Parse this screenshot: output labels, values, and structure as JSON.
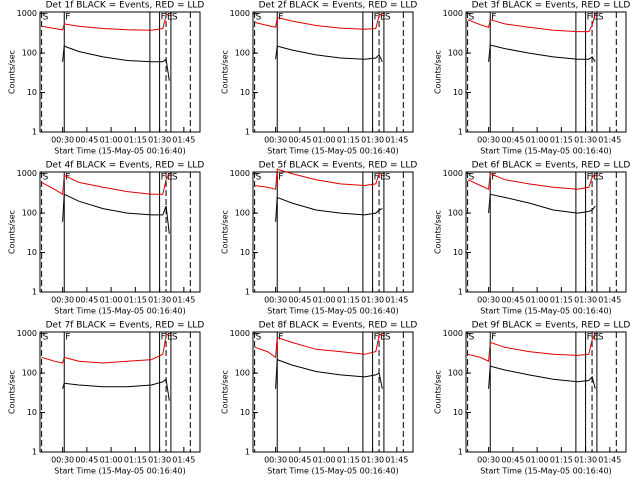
{
  "chart_data": [
    {
      "type": "line",
      "title": "Det 1f BLACK = Events, RED = LLD",
      "xlabel": "Start Time (15-May-05 00:16:40)",
      "ylabel": "Counts/sec",
      "log_y": true,
      "x": [
        "00:17",
        "00:25",
        "00:30",
        "00:31",
        "00:40",
        "00:55",
        "01:10",
        "01:25",
        "01:32",
        "01:34",
        "01:36"
      ],
      "series": [
        {
          "color": "#000000",
          "values": [
            null,
            null,
            60,
            150,
            110,
            80,
            65,
            60,
            60,
            70,
            20
          ]
        },
        {
          "color": "#e00000",
          "values": [
            480,
            420,
            390,
            550,
            480,
            420,
            390,
            380,
            420,
            900,
            1000
          ]
        }
      ],
      "xlim": [
        "00:16",
        "01:55"
      ],
      "xticks": [
        "00:30",
        "00:45",
        "01:00",
        "01:15",
        "01:30",
        "01:45"
      ],
      "ylim": [
        1,
        1100
      ],
      "yticks": [
        1,
        10,
        100,
        1000
      ],
      "markers": [
        {
          "x": "00:17",
          "style": "dashed",
          "label": "S"
        },
        {
          "x": "00:31",
          "style": "solid",
          "label": "F"
        },
        {
          "x": "01:24",
          "style": "solid"
        },
        {
          "x": "01:30",
          "style": "solid",
          "label": "F"
        },
        {
          "x": "01:34",
          "style": "dashed",
          "label": "E"
        },
        {
          "x": "01:37",
          "style": "solid",
          "label": "S"
        },
        {
          "x": "01:49",
          "style": "dashed"
        }
      ]
    },
    {
      "type": "line",
      "title": "Det 2f BLACK = Events, RED = LLD",
      "xlabel": "Start Time (15-May-05 00:16:40)",
      "ylabel": "Counts/sec",
      "log_y": true,
      "x": [
        "00:17",
        "00:25",
        "00:30",
        "00:31",
        "00:40",
        "00:55",
        "01:10",
        "01:25",
        "01:32",
        "01:34",
        "01:36"
      ],
      "series": [
        {
          "color": "#000000",
          "values": [
            null,
            null,
            70,
            150,
            120,
            90,
            75,
            70,
            75,
            90,
            60
          ]
        },
        {
          "color": "#e00000",
          "values": [
            600,
            500,
            450,
            800,
            650,
            500,
            430,
            400,
            420,
            900,
            1000
          ]
        }
      ],
      "xlim": [
        "00:16",
        "01:55"
      ],
      "xticks": [
        "00:30",
        "00:45",
        "01:00",
        "01:15",
        "01:30",
        "01:45"
      ],
      "ylim": [
        1,
        1100
      ],
      "yticks": [
        1,
        10,
        100,
        1000
      ],
      "markers": [
        {
          "x": "00:17",
          "style": "dashed",
          "label": "S"
        },
        {
          "x": "00:31",
          "style": "solid",
          "label": "F"
        },
        {
          "x": "01:24",
          "style": "solid"
        },
        {
          "x": "01:30",
          "style": "solid",
          "label": "F"
        },
        {
          "x": "01:34",
          "style": "dashed",
          "label": "E"
        },
        {
          "x": "01:37",
          "style": "solid",
          "label": "S"
        },
        {
          "x": "01:49",
          "style": "dashed"
        }
      ]
    },
    {
      "type": "line",
      "title": "Det 3f BLACK = Events, RED = LLD",
      "xlabel": "Start Time (15-May-05 00:16:40)",
      "ylabel": "Counts/sec",
      "log_y": true,
      "x": [
        "00:17",
        "00:25",
        "00:30",
        "00:31",
        "00:40",
        "00:55",
        "01:10",
        "01:25",
        "01:32",
        "01:34",
        "01:36"
      ],
      "series": [
        {
          "color": "#000000",
          "values": [
            null,
            null,
            60,
            160,
            130,
            100,
            80,
            70,
            70,
            80,
            60
          ]
        },
        {
          "color": "#e00000",
          "values": [
            700,
            520,
            450,
            700,
            550,
            450,
            380,
            350,
            350,
            500,
            1000
          ]
        }
      ],
      "xlim": [
        "00:16",
        "01:55"
      ],
      "xticks": [
        "00:30",
        "00:45",
        "01:00",
        "01:15",
        "01:30",
        "01:45"
      ],
      "ylim": [
        1,
        1100
      ],
      "yticks": [
        1,
        10,
        100,
        1000
      ],
      "markers": [
        {
          "x": "00:17",
          "style": "dashed",
          "label": "S"
        },
        {
          "x": "00:31",
          "style": "solid",
          "label": "F"
        },
        {
          "x": "01:24",
          "style": "solid"
        },
        {
          "x": "01:30",
          "style": "solid",
          "label": "F"
        },
        {
          "x": "01:34",
          "style": "dashed",
          "label": "E"
        },
        {
          "x": "01:37",
          "style": "solid",
          "label": "S"
        },
        {
          "x": "01:49",
          "style": "dashed"
        }
      ]
    },
    {
      "type": "line",
      "title": "Det 4f BLACK = Events, RED = LLD",
      "xlabel": "Start Time (15-May-05 00:16:40)",
      "ylabel": "Counts/sec",
      "log_y": true,
      "x": [
        "00:17",
        "00:25",
        "00:30",
        "00:31",
        "00:40",
        "00:55",
        "01:10",
        "01:25",
        "01:32",
        "01:34",
        "01:36"
      ],
      "series": [
        {
          "color": "#000000",
          "values": [
            null,
            null,
            60,
            300,
            200,
            130,
            100,
            90,
            90,
            150,
            30
          ]
        },
        {
          "color": "#e00000",
          "values": [
            600,
            400,
            300,
            900,
            600,
            450,
            350,
            300,
            300,
            700,
            1000
          ]
        }
      ],
      "xlim": [
        "00:16",
        "01:55"
      ],
      "xticks": [
        "00:30",
        "00:45",
        "01:00",
        "01:15",
        "01:30",
        "01:45"
      ],
      "ylim": [
        1,
        1100
      ],
      "yticks": [
        1,
        10,
        100,
        1000
      ],
      "markers": [
        {
          "x": "00:17",
          "style": "dashed",
          "label": "S"
        },
        {
          "x": "00:31",
          "style": "solid",
          "label": "F"
        },
        {
          "x": "01:24",
          "style": "solid"
        },
        {
          "x": "01:30",
          "style": "solid",
          "label": "F"
        },
        {
          "x": "01:34",
          "style": "dashed",
          "label": "E"
        },
        {
          "x": "01:37",
          "style": "solid",
          "label": "S"
        },
        {
          "x": "01:49",
          "style": "dashed"
        }
      ]
    },
    {
      "type": "line",
      "title": "Det 5f BLACK = Events, RED = LLD",
      "xlabel": "Start Time (15-May-05 00:16:40)",
      "ylabel": "Counts/sec",
      "log_y": true,
      "x": [
        "00:17",
        "00:25",
        "00:30",
        "00:31",
        "00:40",
        "00:55",
        "01:10",
        "01:25",
        "01:32",
        "01:34",
        "01:36"
      ],
      "series": [
        {
          "color": "#000000",
          "values": [
            null,
            null,
            60,
            250,
            180,
            120,
            100,
            90,
            100,
            120,
            130
          ]
        },
        {
          "color": "#e00000",
          "values": [
            500,
            450,
            400,
            1300,
            1000,
            700,
            550,
            500,
            550,
            1000,
            1000
          ]
        }
      ],
      "xlim": [
        "00:16",
        "01:55"
      ],
      "xticks": [
        "00:30",
        "00:45",
        "01:00",
        "01:15",
        "01:30",
        "01:45"
      ],
      "ylim": [
        1,
        1100
      ],
      "yticks": [
        1,
        10,
        100,
        1000
      ],
      "markers": [
        {
          "x": "00:17",
          "style": "dashed",
          "label": "S"
        },
        {
          "x": "00:31",
          "style": "solid",
          "label": "F"
        },
        {
          "x": "01:24",
          "style": "solid"
        },
        {
          "x": "01:30",
          "style": "solid",
          "label": "F"
        },
        {
          "x": "01:34",
          "style": "dashed",
          "label": "E"
        },
        {
          "x": "01:37",
          "style": "solid",
          "label": "S"
        },
        {
          "x": "01:49",
          "style": "dashed"
        }
      ]
    },
    {
      "type": "line",
      "title": "Det 6f BLACK = Events, RED = LLD",
      "xlabel": "Start Time (15-May-05 00:16:40)",
      "ylabel": "Counts/sec",
      "log_y": true,
      "x": [
        "00:17",
        "00:25",
        "00:30",
        "00:31",
        "00:40",
        "00:55",
        "01:10",
        "01:25",
        "01:32",
        "01:34",
        "01:36"
      ],
      "series": [
        {
          "color": "#000000",
          "values": [
            null,
            null,
            100,
            300,
            250,
            180,
            120,
            100,
            110,
            120,
            150
          ]
        },
        {
          "color": "#e00000",
          "values": [
            700,
            500,
            400,
            1000,
            700,
            550,
            450,
            400,
            450,
            800,
            1000
          ]
        }
      ],
      "xlim": [
        "00:16",
        "01:55"
      ],
      "xticks": [
        "00:30",
        "00:45",
        "01:00",
        "01:15",
        "01:30",
        "01:45"
      ],
      "ylim": [
        1,
        1100
      ],
      "yticks": [
        1,
        10,
        100,
        1000
      ],
      "markers": [
        {
          "x": "00:17",
          "style": "dashed",
          "label": "S"
        },
        {
          "x": "00:31",
          "style": "solid",
          "label": "F"
        },
        {
          "x": "01:24",
          "style": "solid"
        },
        {
          "x": "01:30",
          "style": "solid",
          "label": "F"
        },
        {
          "x": "01:34",
          "style": "dashed",
          "label": "E"
        },
        {
          "x": "01:37",
          "style": "solid",
          "label": "S"
        },
        {
          "x": "01:49",
          "style": "dashed"
        }
      ]
    },
    {
      "type": "line",
      "title": "Det 7f BLACK = Events, RED = LLD",
      "xlabel": "Start Time (15-May-05 00:16:40)",
      "ylabel": "Counts/sec",
      "log_y": true,
      "x": [
        "00:17",
        "00:25",
        "00:30",
        "00:31",
        "00:40",
        "00:55",
        "01:10",
        "01:25",
        "01:32",
        "01:34",
        "01:36"
      ],
      "series": [
        {
          "color": "#000000",
          "values": [
            null,
            null,
            40,
            55,
            50,
            45,
            45,
            50,
            60,
            70,
            20
          ]
        },
        {
          "color": "#e00000",
          "values": [
            250,
            200,
            180,
            250,
            200,
            180,
            200,
            220,
            300,
            900,
            1000
          ]
        }
      ],
      "xlim": [
        "00:16",
        "01:55"
      ],
      "xticks": [
        "00:30",
        "00:45",
        "01:00",
        "01:15",
        "01:30",
        "01:45"
      ],
      "ylim": [
        1,
        1100
      ],
      "yticks": [
        1,
        10,
        100,
        1000
      ],
      "markers": [
        {
          "x": "00:17",
          "style": "dashed",
          "label": "S"
        },
        {
          "x": "00:31",
          "style": "solid",
          "label": "F"
        },
        {
          "x": "01:24",
          "style": "solid"
        },
        {
          "x": "01:30",
          "style": "solid",
          "label": "F"
        },
        {
          "x": "01:34",
          "style": "dashed",
          "label": "E"
        },
        {
          "x": "01:37",
          "style": "solid",
          "label": "S"
        },
        {
          "x": "01:49",
          "style": "dashed"
        }
      ]
    },
    {
      "type": "line",
      "title": "Det 8f BLACK = Events, RED = LLD",
      "xlabel": "Start Time (15-May-05 00:16:40)",
      "ylabel": "Counts/sec",
      "log_y": true,
      "x": [
        "00:17",
        "00:25",
        "00:30",
        "00:31",
        "00:40",
        "00:55",
        "01:10",
        "01:25",
        "01:32",
        "01:34",
        "01:36"
      ],
      "series": [
        {
          "color": "#000000",
          "values": [
            null,
            null,
            40,
            220,
            160,
            110,
            90,
            80,
            90,
            100,
            40
          ]
        },
        {
          "color": "#e00000",
          "values": [
            450,
            350,
            250,
            800,
            600,
            400,
            350,
            300,
            350,
            900,
            1000
          ]
        }
      ],
      "xlim": [
        "00:16",
        "01:55"
      ],
      "xticks": [
        "00:30",
        "00:45",
        "01:00",
        "01:15",
        "01:30",
        "01:45"
      ],
      "ylim": [
        1,
        1100
      ],
      "yticks": [
        1,
        10,
        100,
        1000
      ],
      "markers": [
        {
          "x": "00:17",
          "style": "dashed",
          "label": "S"
        },
        {
          "x": "00:31",
          "style": "solid",
          "label": "F"
        },
        {
          "x": "01:24",
          "style": "solid"
        },
        {
          "x": "01:30",
          "style": "solid",
          "label": "F"
        },
        {
          "x": "01:34",
          "style": "dashed",
          "label": "E"
        },
        {
          "x": "01:37",
          "style": "solid",
          "label": "S"
        },
        {
          "x": "01:49",
          "style": "dashed"
        }
      ]
    },
    {
      "type": "line",
      "title": "Det 9f BLACK = Events, RED = LLD",
      "xlabel": "Start Time (15-May-05 00:16:40)",
      "ylabel": "Counts/sec",
      "log_y": true,
      "x": [
        "00:17",
        "00:25",
        "00:30",
        "00:31",
        "00:40",
        "00:55",
        "01:10",
        "01:25",
        "01:32",
        "01:34",
        "01:36"
      ],
      "series": [
        {
          "color": "#000000",
          "values": [
            null,
            null,
            40,
            150,
            120,
            90,
            70,
            60,
            65,
            80,
            40
          ]
        },
        {
          "color": "#e00000",
          "values": [
            300,
            250,
            200,
            600,
            450,
            350,
            300,
            280,
            300,
            700,
            1000
          ]
        }
      ],
      "xlim": [
        "00:16",
        "01:55"
      ],
      "xticks": [
        "00:30",
        "00:45",
        "01:00",
        "01:15",
        "01:30",
        "01:45"
      ],
      "ylim": [
        1,
        1100
      ],
      "yticks": [
        1,
        10,
        100,
        1000
      ],
      "markers": [
        {
          "x": "00:17",
          "style": "dashed",
          "label": "S"
        },
        {
          "x": "00:31",
          "style": "solid",
          "label": "F"
        },
        {
          "x": "01:24",
          "style": "solid"
        },
        {
          "x": "01:30",
          "style": "solid",
          "label": "F"
        },
        {
          "x": "01:34",
          "style": "dashed",
          "label": "E"
        },
        {
          "x": "01:37",
          "style": "solid",
          "label": "S"
        },
        {
          "x": "01:49",
          "style": "dashed"
        }
      ]
    }
  ]
}
